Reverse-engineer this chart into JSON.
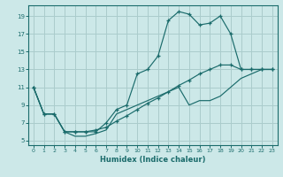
{
  "xlabel": "Humidex (Indice chaleur)",
  "bg_color": "#cce8e8",
  "grid_color": "#aacccc",
  "line_color": "#1a6b6b",
  "xlim": [
    -0.5,
    23.5
  ],
  "ylim": [
    4.5,
    20.2
  ],
  "xticks": [
    0,
    1,
    2,
    3,
    4,
    5,
    6,
    7,
    8,
    9,
    10,
    11,
    12,
    13,
    14,
    15,
    16,
    17,
    18,
    19,
    20,
    21,
    22,
    23
  ],
  "yticks": [
    5,
    7,
    9,
    11,
    13,
    15,
    17,
    19
  ],
  "line_top": [
    11,
    8,
    8,
    6,
    6,
    6,
    6,
    7,
    8.5,
    9,
    12.5,
    13,
    14.5,
    18.5,
    19.5,
    19.2,
    18,
    18.2,
    19,
    17,
    13,
    13,
    13,
    13
  ],
  "line_mid": [
    11,
    8,
    8,
    6,
    6,
    6,
    6.2,
    6.5,
    7.2,
    7.8,
    8.5,
    9.2,
    9.8,
    10.5,
    11.2,
    11.8,
    12.5,
    13.0,
    13.5,
    13.5,
    13,
    13,
    13,
    13
  ],
  "line_bot": [
    11,
    8,
    8,
    6,
    5.5,
    5.5,
    5.8,
    6.2,
    8,
    8.5,
    9,
    9.5,
    10,
    10.5,
    11,
    9,
    9.5,
    9.5,
    10,
    11,
    12,
    12.5,
    13,
    13
  ]
}
